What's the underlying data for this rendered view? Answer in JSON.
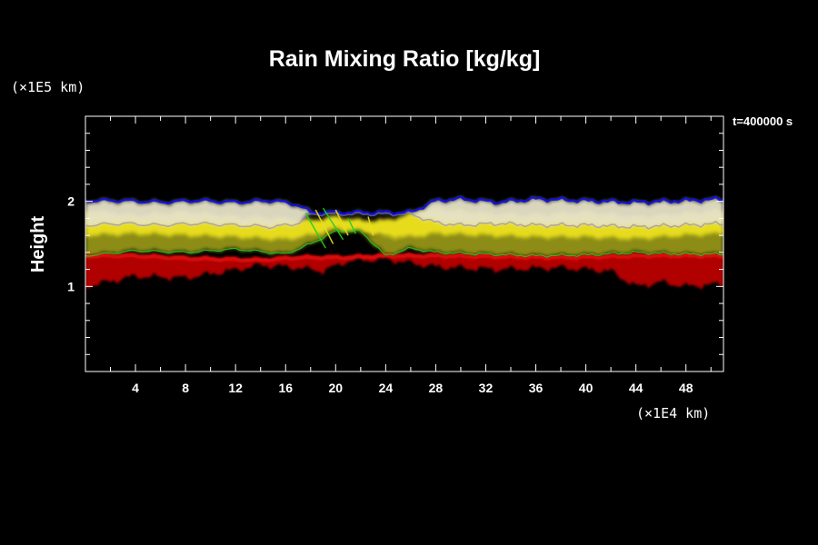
{
  "chart_data": {
    "type": "heatmap",
    "title": "Rain Mixing Ratio [kg/kg]",
    "ylabel": "Height",
    "xlabel": "",
    "x_unit": "(×1E4 km)",
    "y_unit": "(×1E5 km)",
    "time_label": "t=400000 s",
    "xlim": [
      0,
      51
    ],
    "ylim": [
      0,
      3
    ],
    "x_ticks": [
      4,
      8,
      12,
      16,
      20,
      24,
      28,
      32,
      36,
      40,
      44,
      48
    ],
    "x_tick_labels": [
      "4",
      "8",
      "12",
      "16",
      "20",
      "24",
      "28",
      "32",
      "36",
      "40",
      "44",
      "48"
    ],
    "y_ticks": [
      1,
      2
    ],
    "y_tick_labels": [
      "1",
      "2"
    ],
    "grid": false,
    "colors": {
      "background": "#000000",
      "low": "#8b0000",
      "lower_mid": "#e01010",
      "mid": "#9a9a10",
      "upper_mid": "#e8e020",
      "high": "#e8e2c8",
      "top_edge": "#1010e0",
      "fringe": "#20d020"
    },
    "layers": [
      {
        "name": "red-band",
        "color": "#b00000",
        "x": [
          0,
          4,
          8,
          11,
          14,
          17,
          19,
          21,
          24,
          28,
          33,
          38,
          42,
          44,
          46,
          48,
          51
        ],
        "bottom": [
          1.0,
          1.12,
          1.1,
          1.17,
          1.25,
          1.22,
          1.18,
          1.3,
          1.32,
          1.23,
          1.2,
          1.22,
          1.18,
          1.0,
          1.05,
          1.0,
          1.03
        ],
        "top": [
          1.38,
          1.38,
          1.35,
          1.34,
          1.33,
          1.36,
          1.36,
          1.36,
          1.38,
          1.38,
          1.37,
          1.36,
          1.37,
          1.38,
          1.38,
          1.38,
          1.38
        ]
      },
      {
        "name": "olive-band",
        "color": "#8c8c14",
        "x": [
          0,
          4,
          8,
          12,
          16,
          18,
          20,
          22,
          24,
          26,
          28,
          32,
          36,
          40,
          44,
          48,
          51
        ],
        "bottom": [
          1.36,
          1.42,
          1.4,
          1.44,
          1.38,
          1.5,
          1.65,
          1.65,
          1.36,
          1.45,
          1.4,
          1.38,
          1.36,
          1.37,
          1.4,
          1.38,
          1.38
        ],
        "top": [
          1.78,
          1.7,
          1.72,
          1.68,
          1.6,
          1.72,
          1.8,
          1.62,
          1.6,
          1.65,
          1.75,
          1.72,
          1.7,
          1.68,
          1.66,
          1.7,
          1.72
        ]
      },
      {
        "name": "yellow-band",
        "color": "#e6dc1e",
        "x": [
          0,
          4,
          8,
          12,
          16,
          18,
          20,
          22,
          24,
          26,
          28,
          32,
          36,
          40,
          44,
          48,
          51
        ],
        "bottom": [
          1.6,
          1.62,
          1.6,
          1.58,
          1.55,
          1.6,
          1.68,
          1.64,
          1.58,
          1.58,
          1.62,
          1.6,
          1.58,
          1.58,
          1.56,
          1.6,
          1.62
        ],
        "top": [
          1.9,
          1.84,
          1.88,
          1.82,
          1.8,
          1.78,
          1.82,
          1.78,
          1.78,
          1.85,
          1.92,
          1.86,
          1.84,
          1.88,
          1.82,
          1.86,
          1.9
        ]
      },
      {
        "name": "white-cloud",
        "color": "#e6e2c8",
        "x": [
          0,
          3,
          6,
          9,
          12,
          15,
          17,
          18,
          26,
          28,
          30,
          33,
          36,
          40,
          44,
          48,
          51
        ],
        "bottom": [
          1.72,
          1.74,
          1.72,
          1.74,
          1.72,
          1.7,
          1.74,
          1.85,
          1.85,
          1.75,
          1.72,
          1.74,
          1.72,
          1.72,
          1.7,
          1.72,
          1.74
        ],
        "top": [
          2.0,
          2.0,
          1.98,
          2.0,
          1.98,
          2.0,
          1.95,
          1.86,
          1.86,
          2.0,
          2.02,
          1.98,
          2.02,
          2.0,
          1.98,
          2.0,
          2.02
        ]
      }
    ]
  }
}
